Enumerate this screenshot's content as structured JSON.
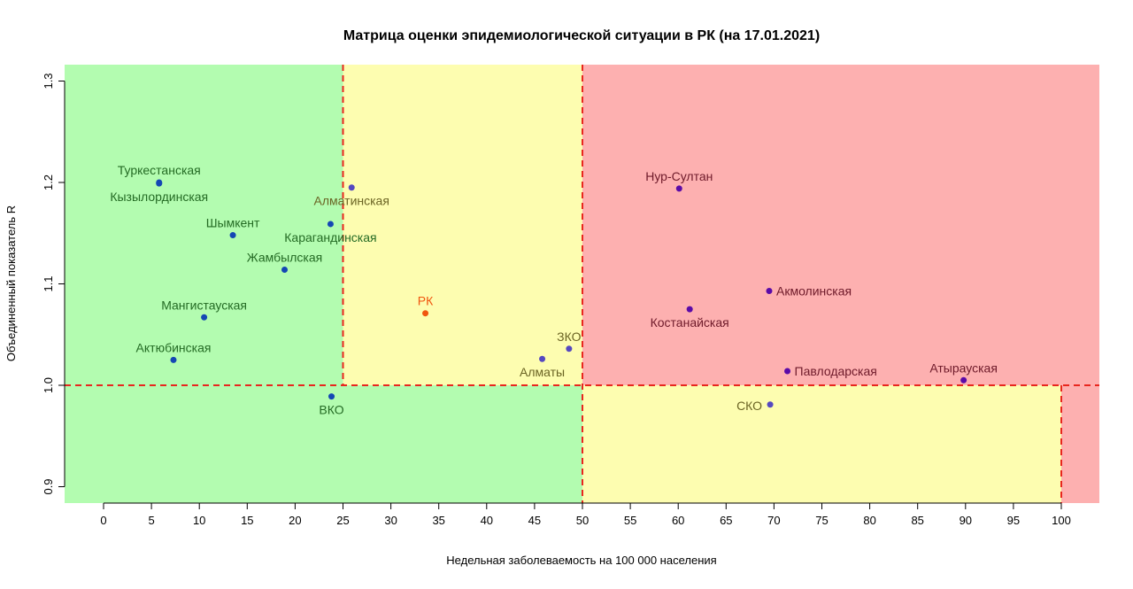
{
  "chart_data": {
    "type": "scatter",
    "title": "Матрица оценки эпидемиологической ситуации в РК (на 17.01.2021)",
    "xlabel": "Недельная заболеваемость на 100 000 населения",
    "ylabel": "Объединенный показатель R",
    "xlim": [
      -4,
      104
    ],
    "ylim": [
      0.884,
      1.317
    ],
    "xticks": [
      0,
      5,
      10,
      15,
      20,
      25,
      30,
      35,
      40,
      45,
      50,
      55,
      60,
      65,
      70,
      75,
      80,
      85,
      90,
      95,
      100
    ],
    "yticks": [
      0.9,
      1.0,
      1.1,
      1.2,
      1.3
    ],
    "ytick_labels": [
      "0.9",
      "1.0",
      "1.1",
      "1.2",
      "1.3"
    ],
    "thresholds": {
      "x": [
        25,
        50,
        100
      ],
      "y": 1.0
    },
    "zone_colors": {
      "green": "#b3fcb0",
      "yellow": "#fdfdb0",
      "red": "#fdb0b0",
      "line": "#e8261e"
    },
    "points": [
      {
        "name": "Туркестанская",
        "x": 5.8,
        "y": 1.2,
        "zone": "green",
        "label_pos": "above"
      },
      {
        "name": "Кызылординская",
        "x": 5.8,
        "y": 1.199,
        "zone": "green",
        "label_pos": "below"
      },
      {
        "name": "Шымкент",
        "x": 13.5,
        "y": 1.148,
        "zone": "green",
        "label_pos": "above"
      },
      {
        "name": "Алматинская",
        "x": 25.9,
        "y": 1.195,
        "zone": "yellow",
        "label_pos": "below"
      },
      {
        "name": "Карагандинская",
        "x": 23.7,
        "y": 1.159,
        "zone": "green",
        "label_pos": "below"
      },
      {
        "name": "Жамбылская",
        "x": 18.9,
        "y": 1.114,
        "zone": "green",
        "label_pos": "above"
      },
      {
        "name": "Мангистауская",
        "x": 10.5,
        "y": 1.067,
        "zone": "green",
        "label_pos": "above"
      },
      {
        "name": "РК",
        "x": 33.6,
        "y": 1.071,
        "zone": "rk",
        "label_pos": "above"
      },
      {
        "name": "Актюбинская",
        "x": 7.3,
        "y": 1.025,
        "zone": "green",
        "label_pos": "above"
      },
      {
        "name": "ВКО",
        "x": 23.8,
        "y": 0.989,
        "zone": "green",
        "label_pos": "below"
      },
      {
        "name": "Алматы",
        "x": 45.8,
        "y": 1.026,
        "zone": "yellow",
        "label_pos": "below"
      },
      {
        "name": "ЗКО",
        "x": 48.6,
        "y": 1.036,
        "zone": "yellow",
        "label_pos": "above"
      },
      {
        "name": "Нур-Султан",
        "x": 60.1,
        "y": 1.194,
        "zone": "red",
        "label_pos": "above"
      },
      {
        "name": "Акмолинская",
        "x": 69.5,
        "y": 1.093,
        "zone": "red",
        "label_pos": "right"
      },
      {
        "name": "Костанайская",
        "x": 61.2,
        "y": 1.075,
        "zone": "red",
        "label_pos": "below"
      },
      {
        "name": "Павлодарская",
        "x": 71.4,
        "y": 1.014,
        "zone": "red",
        "label_pos": "right"
      },
      {
        "name": "Атырауская",
        "x": 89.8,
        "y": 1.005,
        "zone": "red",
        "label_pos": "above"
      },
      {
        "name": "СКО",
        "x": 69.6,
        "y": 0.981,
        "zone": "yellow",
        "label_pos": "left"
      }
    ],
    "point_colors": {
      "green": "#1447b4",
      "yellow": "#5548c0",
      "red": "#5a0aa8",
      "rk": "#f0560f"
    },
    "label_colors": {
      "green": "#246b24",
      "yellow": "#6b6424",
      "red": "#6e1a2a",
      "rk": "#f0560f"
    }
  }
}
